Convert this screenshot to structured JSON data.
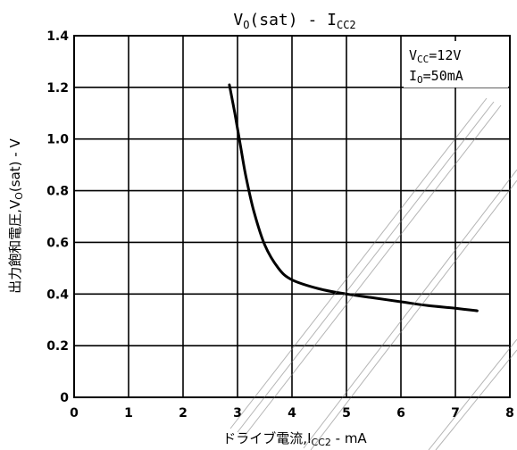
{
  "chart_data": {
    "type": "line",
    "title": {
      "main": "V",
      "main_sub": "O",
      "rest": "(sat) - I",
      "rest_sub": "CC2"
    },
    "xlabel": {
      "main": "ドライブ電流,I",
      "sub": "CC2",
      "rest": " - mA"
    },
    "ylabel": {
      "main": "出力飽和電圧,V",
      "sub": "O",
      "rest": "(sat) - V"
    },
    "xlim": [
      0,
      8
    ],
    "ylim": [
      0,
      1.4
    ],
    "x_ticks": [
      "0",
      "1",
      "2",
      "3",
      "4",
      "5",
      "6",
      "7",
      "8"
    ],
    "y_ticks": [
      "0",
      "0.2",
      "0.4",
      "0.6",
      "0.8",
      "1.0",
      "1.2",
      "1.4"
    ],
    "grid": true,
    "annotation": {
      "line1_main": "V",
      "line1_sub": "CC",
      "line1_rest": "=12V",
      "line2_main": "I",
      "line2_sub": "O",
      "line2_rest": "=50mA"
    },
    "series": [
      {
        "x": [
          2.85,
          2.95,
          3.05,
          3.15,
          3.3,
          3.5,
          3.75,
          4.0,
          4.5,
          5.0,
          5.5,
          6.0,
          6.5,
          7.0,
          7.4
        ],
        "y": [
          1.21,
          1.1,
          0.98,
          0.86,
          0.72,
          0.59,
          0.5,
          0.455,
          0.42,
          0.4,
          0.385,
          0.37,
          0.355,
          0.345,
          0.335
        ]
      }
    ]
  }
}
